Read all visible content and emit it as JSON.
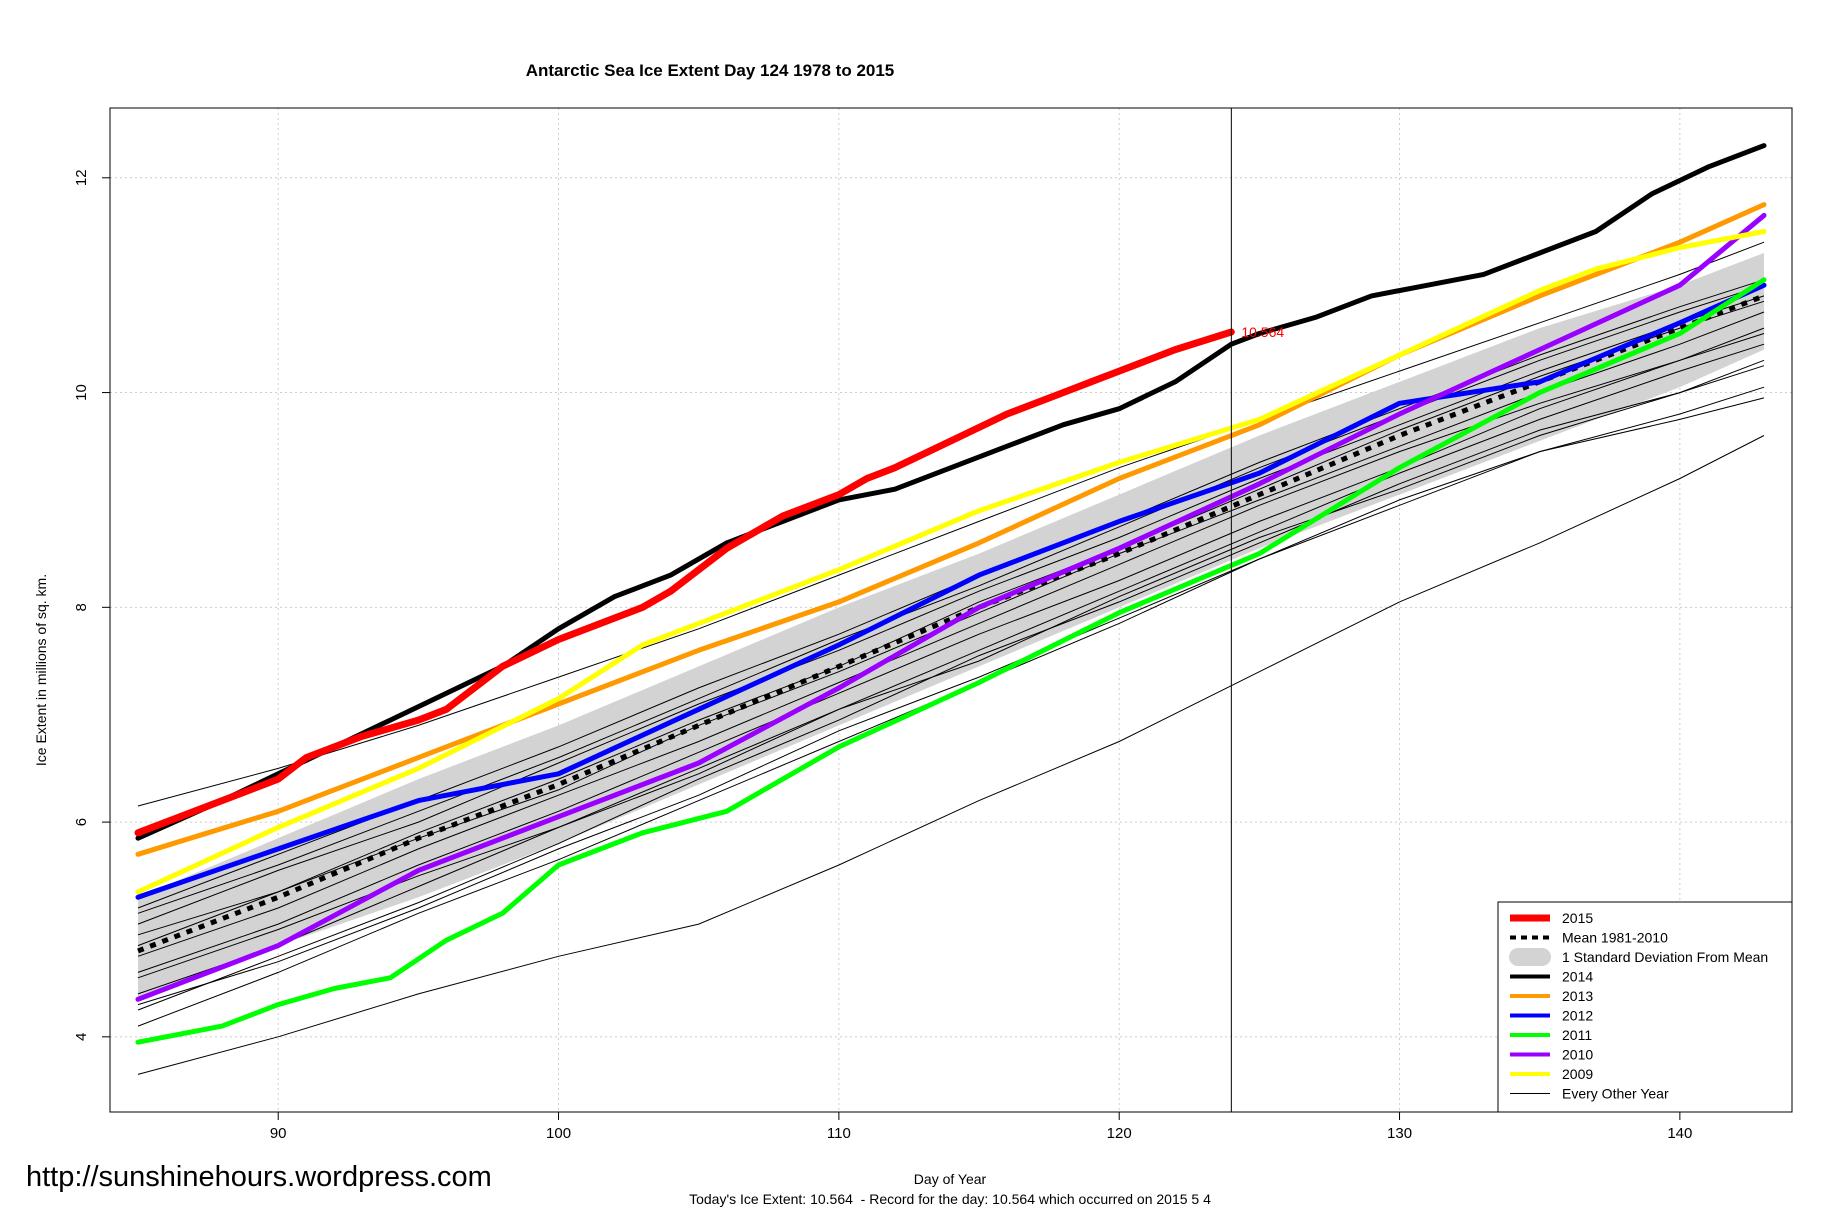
{
  "chart_data": {
    "type": "line",
    "title": "Antarctic Sea Ice Extent Day 124 1978 to 2015",
    "xlabel": "Day of Year",
    "ylabel": "Ice Extent in millions of sq. km.",
    "xlim": [
      84,
      144
    ],
    "ylim": [
      3.3,
      12.65
    ],
    "x_ticks": [
      90,
      100,
      110,
      120,
      130,
      140
    ],
    "y_ticks": [
      4,
      6,
      8,
      10,
      12
    ],
    "grid": true,
    "current_day": 124,
    "current_value": 10.564,
    "current_value_label": "10.564",
    "watermark": "http://sunshinehours.wordpress.com",
    "footer": "Today's Ice Extent: 10.564  - Record for the day: 10.564 which occurred on 2015 5 4",
    "legend_position": "bottom-right",
    "std_band": {
      "name": "1 Standard Deviation From Mean",
      "color": "#d3d3d3",
      "x": [
        85,
        90,
        95,
        100,
        105,
        110,
        115,
        120,
        125,
        130,
        135,
        140,
        143
      ],
      "upper": [
        5.3,
        5.85,
        6.4,
        6.9,
        7.45,
        8.0,
        8.5,
        9.05,
        9.6,
        10.1,
        10.6,
        11.0,
        11.3
      ],
      "lower": [
        4.35,
        4.85,
        5.3,
        5.8,
        6.35,
        6.9,
        7.45,
        8.0,
        8.55,
        9.05,
        9.55,
        10.05,
        10.4
      ]
    },
    "series": [
      {
        "name": "2015",
        "color": "#ff0000",
        "width": 7,
        "x": [
          85,
          88,
          90,
          91,
          93,
          95,
          96,
          98,
          100,
          103,
          104,
          106,
          108,
          110,
          111,
          112,
          114,
          116,
          118,
          119,
          120,
          122,
          124
        ],
        "values": [
          5.9,
          6.2,
          6.4,
          6.6,
          6.8,
          6.95,
          7.05,
          7.45,
          7.7,
          8.0,
          8.15,
          8.55,
          8.85,
          9.05,
          9.2,
          9.3,
          9.55,
          9.8,
          10.0,
          10.1,
          10.2,
          10.4,
          10.564
        ]
      },
      {
        "name": "Mean 1981-2010",
        "color": "#000000",
        "width": 5,
        "dash": "6,7",
        "x": [
          85,
          90,
          95,
          100,
          105,
          110,
          115,
          120,
          125,
          130,
          135,
          140,
          143
        ],
        "values": [
          4.8,
          5.3,
          5.85,
          6.35,
          6.9,
          7.45,
          8.0,
          8.5,
          9.05,
          9.6,
          10.1,
          10.6,
          10.9
        ]
      },
      {
        "name": "2014",
        "color": "#000000",
        "width": 5,
        "x": [
          85,
          88,
          90,
          92,
          94,
          96,
          98,
          100,
          102,
          104,
          106,
          108,
          110,
          112,
          114,
          116,
          118,
          120,
          122,
          124,
          125,
          127,
          129,
          131,
          133,
          135,
          137,
          139,
          141,
          143
        ],
        "values": [
          5.85,
          6.2,
          6.45,
          6.7,
          6.95,
          7.2,
          7.45,
          7.8,
          8.1,
          8.3,
          8.6,
          8.8,
          9.0,
          9.1,
          9.3,
          9.5,
          9.7,
          9.85,
          10.1,
          10.45,
          10.55,
          10.7,
          10.9,
          11.0,
          11.1,
          11.3,
          11.5,
          11.85,
          12.1,
          12.3
        ]
      },
      {
        "name": "2013",
        "color": "#ff9900",
        "width": 5,
        "x": [
          85,
          90,
          95,
          100,
          105,
          110,
          115,
          120,
          125,
          130,
          135,
          140,
          143
        ],
        "values": [
          5.7,
          6.1,
          6.6,
          7.1,
          7.6,
          8.05,
          8.6,
          9.2,
          9.7,
          10.35,
          10.9,
          11.4,
          11.75
        ]
      },
      {
        "name": "2012",
        "color": "#0000ff",
        "width": 5,
        "x": [
          85,
          90,
          95,
          100,
          105,
          110,
          115,
          120,
          125,
          130,
          135,
          140,
          143
        ],
        "values": [
          5.3,
          5.75,
          6.2,
          6.45,
          7.05,
          7.65,
          8.3,
          8.8,
          9.25,
          9.9,
          10.1,
          10.65,
          11.0
        ]
      },
      {
        "name": "2011",
        "color": "#00ff00",
        "width": 5,
        "x": [
          85,
          88,
          90,
          92,
          94,
          96,
          98,
          100,
          103,
          106,
          110,
          115,
          120,
          125,
          130,
          135,
          140,
          143
        ],
        "values": [
          3.95,
          4.1,
          4.3,
          4.45,
          4.55,
          4.9,
          5.15,
          5.6,
          5.9,
          6.1,
          6.7,
          7.3,
          7.95,
          8.5,
          9.3,
          10.0,
          10.55,
          11.05
        ]
      },
      {
        "name": "2010",
        "color": "#9900ff",
        "width": 5,
        "x": [
          85,
          90,
          95,
          100,
          105,
          110,
          115,
          120,
          125,
          130,
          135,
          140,
          143
        ],
        "values": [
          4.35,
          4.85,
          5.55,
          6.05,
          6.55,
          7.25,
          8.0,
          8.55,
          9.15,
          9.8,
          10.4,
          11.0,
          11.65
        ]
      },
      {
        "name": "2009",
        "color": "#ffff00",
        "width": 5,
        "x": [
          85,
          90,
          95,
          100,
          103,
          105,
          110,
          115,
          120,
          125,
          130,
          135,
          137,
          140,
          143
        ],
        "values": [
          5.35,
          5.95,
          6.5,
          7.15,
          7.65,
          7.85,
          8.35,
          8.9,
          9.35,
          9.75,
          10.35,
          10.95,
          11.15,
          11.35,
          11.5
        ]
      }
    ],
    "other_years": {
      "name": "Every Other Year",
      "color": "#000000",
      "width": 1,
      "x": [
        85,
        90,
        95,
        100,
        105,
        110,
        115,
        120,
        125,
        130,
        135,
        140,
        143
      ],
      "lines": [
        [
          6.15,
          6.5,
          6.9,
          7.35,
          7.8,
          8.3,
          8.8,
          9.3,
          9.75,
          10.2,
          10.65,
          11.1,
          11.4
        ],
        [
          3.65,
          4.0,
          4.4,
          4.75,
          5.05,
          5.6,
          6.2,
          6.75,
          7.4,
          8.05,
          8.6,
          9.2,
          9.6
        ],
        [
          4.25,
          4.75,
          5.25,
          5.8,
          6.4,
          6.95,
          7.55,
          8.05,
          8.6,
          9.15,
          9.65,
          10.0,
          10.3
        ],
        [
          4.4,
          4.85,
          5.4,
          5.95,
          6.45,
          7.05,
          7.5,
          8.1,
          8.65,
          9.1,
          9.6,
          10.0,
          10.25
        ],
        [
          4.95,
          5.35,
          5.85,
          6.3,
          6.9,
          7.4,
          7.95,
          8.5,
          9.0,
          9.5,
          10.0,
          10.45,
          10.75
        ],
        [
          5.05,
          5.55,
          6.0,
          6.55,
          7.1,
          7.6,
          8.15,
          8.65,
          9.2,
          9.7,
          10.2,
          10.65,
          10.9
        ],
        [
          4.6,
          5.05,
          5.6,
          6.1,
          6.65,
          7.2,
          7.75,
          8.25,
          8.8,
          9.3,
          9.85,
          10.3,
          10.6
        ],
        [
          4.1,
          4.6,
          5.15,
          5.65,
          6.2,
          6.75,
          7.3,
          7.85,
          8.45,
          8.95,
          9.45,
          9.8,
          10.05
        ],
        [
          4.3,
          4.7,
          5.2,
          5.75,
          6.25,
          6.85,
          7.35,
          7.9,
          8.45,
          9.0,
          9.45,
          9.75,
          9.95
        ],
        [
          4.75,
          5.2,
          5.75,
          6.25,
          6.75,
          7.3,
          7.85,
          8.4,
          8.95,
          9.45,
          9.9,
          10.3,
          10.55
        ],
        [
          5.15,
          5.6,
          6.1,
          6.6,
          7.15,
          7.7,
          8.2,
          8.75,
          9.3,
          9.8,
          10.3,
          10.75,
          11.0
        ],
        [
          4.55,
          5.0,
          5.5,
          5.95,
          6.5,
          7.05,
          7.6,
          8.15,
          8.7,
          9.25,
          9.75,
          10.2,
          10.45
        ],
        [
          4.85,
          5.35,
          5.9,
          6.4,
          6.95,
          7.45,
          8.05,
          8.55,
          9.1,
          9.65,
          10.15,
          10.6,
          10.85
        ],
        [
          5.2,
          5.7,
          6.2,
          6.7,
          7.25,
          7.75,
          8.3,
          8.8,
          9.35,
          9.85,
          10.35,
          10.8,
          11.05
        ]
      ]
    }
  }
}
